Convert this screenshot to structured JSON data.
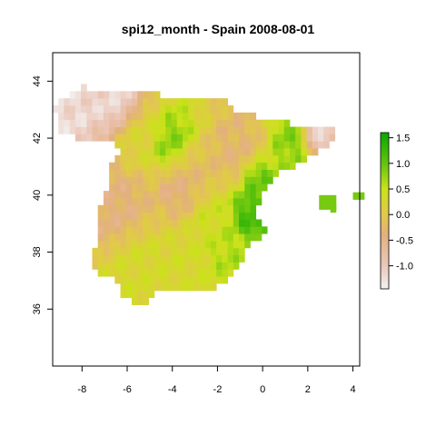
{
  "title": "spi12_month - Spain 2008-08-01",
  "chart_data": {
    "type": "heatmap",
    "title": "spi12_month - Spain 2008-08-01",
    "xlabel": "",
    "ylabel": "",
    "xlim": [
      -9.3,
      4.3
    ],
    "ylim": [
      34.0,
      45.0
    ],
    "x_ticks": [
      "-8",
      "-6",
      "-4",
      "-2",
      "0",
      "2",
      "4"
    ],
    "y_ticks": [
      "36",
      "38",
      "40",
      "42",
      "44"
    ],
    "colorbar": {
      "range": [
        -1.45,
        1.6
      ],
      "ticks": [
        "1.5",
        "1.0",
        "0.5",
        "0.0",
        "-0.5",
        "-1.0"
      ],
      "stops": [
        {
          "value": -1.45,
          "color": "#f2f2f2"
        },
        {
          "value": -1.0,
          "color": "#ebc7b9"
        },
        {
          "value": -0.4,
          "color": "#e3b07e"
        },
        {
          "value": 0.0,
          "color": "#e1c94a"
        },
        {
          "value": 0.5,
          "color": "#cbe21a"
        },
        {
          "value": 1.0,
          "color": "#62c40e"
        },
        {
          "value": 1.6,
          "color": "#08a800"
        }
      ]
    },
    "grid": false,
    "legend": "right",
    "regions": {
      "northwest_coast": -1.2,
      "northern_interior": 0.2,
      "duero_basin_north": 0.9,
      "castilla_interior": -0.2,
      "madrid_area": -0.5,
      "west_interior": -0.4,
      "east_coast_valencia": 1.2,
      "catalonia_inland": 0.8,
      "catalonia_north": -1.1,
      "ebro_valley": -0.3,
      "southwest_andalucia": 0.3,
      "southeast_murcia": 0.6,
      "balearic_islands": 0.9
    }
  }
}
